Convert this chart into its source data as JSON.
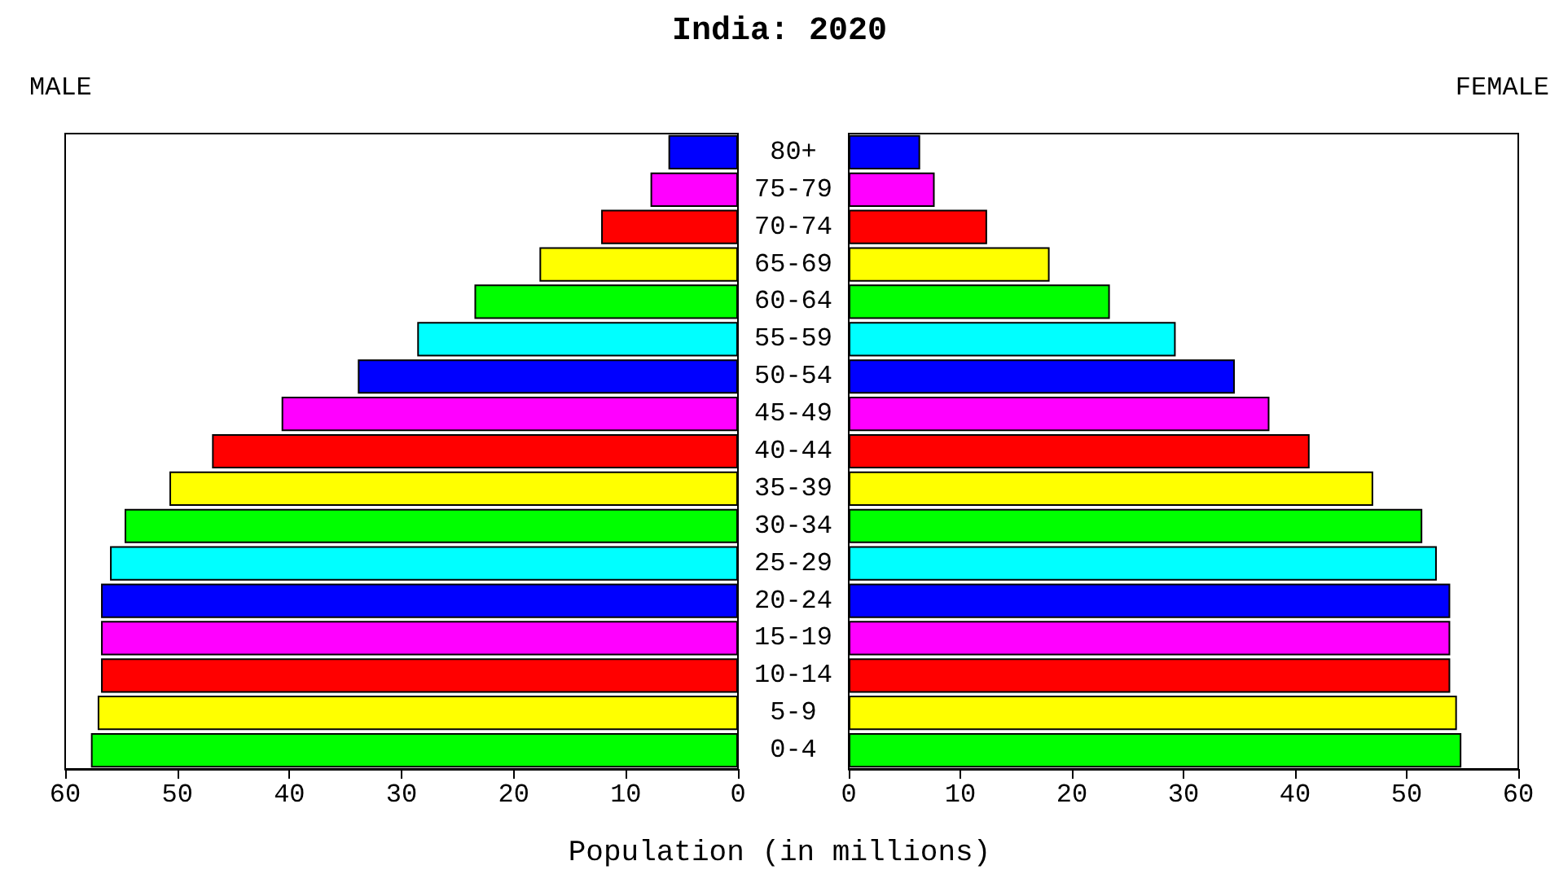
{
  "chart_data": [
    {
      "type": "bar",
      "orientation": "horizontal",
      "title": "India: 2020",
      "annotations": [
        "MALE"
      ],
      "xlabel": "Population (in millions)",
      "categories": [
        "80+",
        "75-79",
        "70-74",
        "65-69",
        "60-64",
        "55-59",
        "50-54",
        "45-49",
        "40-44",
        "35-39",
        "30-34",
        "25-29",
        "20-24",
        "15-19",
        "10-14",
        "5-9",
        "0-4"
      ],
      "values": [
        6.2,
        7.8,
        12.2,
        17.7,
        23.5,
        28.6,
        33.9,
        40.7,
        46.9,
        50.7,
        54.7,
        56.0,
        56.8,
        56.8,
        56.8,
        57.1,
        57.7
      ],
      "colors": [
        "#0000ff",
        "#ff00ff",
        "#ff0000",
        "#ffff00",
        "#00ff00",
        "#00ffff",
        "#0000ff",
        "#ff00ff",
        "#ff0000",
        "#ffff00",
        "#00ff00",
        "#00ffff",
        "#0000ff",
        "#ff00ff",
        "#ff0000",
        "#ffff00",
        "#00ff00"
      ],
      "xlim": [
        60,
        0
      ],
      "xticks": [
        60,
        50,
        40,
        30,
        20,
        10,
        0
      ],
      "grid": false
    },
    {
      "type": "bar",
      "orientation": "horizontal",
      "annotations": [
        "FEMALE"
      ],
      "values": [
        6.4,
        7.7,
        12.4,
        18.0,
        23.4,
        29.3,
        34.6,
        37.7,
        41.3,
        47.0,
        51.4,
        52.7,
        53.9,
        53.9,
        53.9,
        54.5,
        54.9
      ],
      "colors": [
        "#0000ff",
        "#ff00ff",
        "#ff0000",
        "#ffff00",
        "#00ff00",
        "#00ffff",
        "#0000ff",
        "#ff00ff",
        "#ff0000",
        "#ffff00",
        "#00ff00",
        "#00ffff",
        "#0000ff",
        "#ff00ff",
        "#ff0000",
        "#ffff00",
        "#00ff00"
      ],
      "xlim": [
        0,
        60
      ],
      "xticks": [
        0,
        10,
        20,
        30,
        40,
        50,
        60
      ],
      "tick_labels": "x",
      "grid": false
    }
  ]
}
